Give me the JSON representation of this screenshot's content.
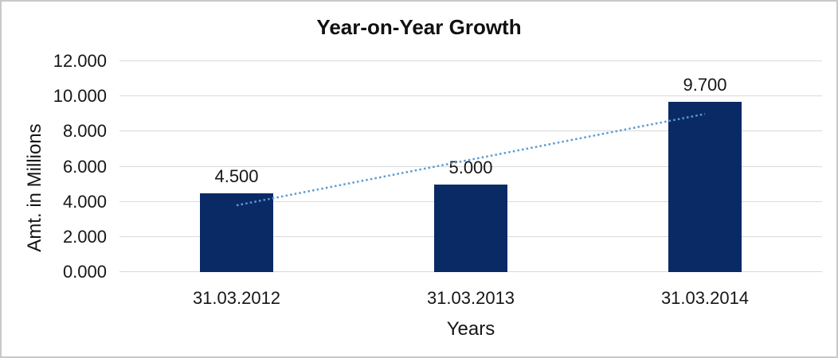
{
  "chart_data": {
    "type": "bar",
    "title": "Year-on-Year Growth",
    "categories": [
      "31.03.2012",
      "31.03.2013",
      "31.03.2014"
    ],
    "values": [
      4.5,
      5.0,
      9.7
    ],
    "data_labels": [
      "4.500",
      "5.000",
      "9.700"
    ],
    "xlabel": "Years",
    "ylabel": "Amt. in Millions",
    "ylim": [
      0,
      12
    ],
    "yticks": [
      0,
      2,
      4,
      6,
      8,
      10,
      12
    ],
    "ytick_labels": [
      "0.000",
      "2.000",
      "4.000",
      "6.000",
      "8.000",
      "10.000",
      "12.000"
    ],
    "grid": true,
    "legend": "none",
    "trendline": {
      "style": "dotted-linear",
      "points": [
        {
          "category_index": 0,
          "value": 3.8
        },
        {
          "category_index": 2,
          "value": 9.0
        }
      ]
    },
    "colors": {
      "bar": "#0a2a66",
      "trendline": "#5b9bd5",
      "gridline": "#d9d9d9",
      "text": "#161616",
      "background": "#ffffff",
      "frame_border": "#c9c9c9"
    }
  }
}
